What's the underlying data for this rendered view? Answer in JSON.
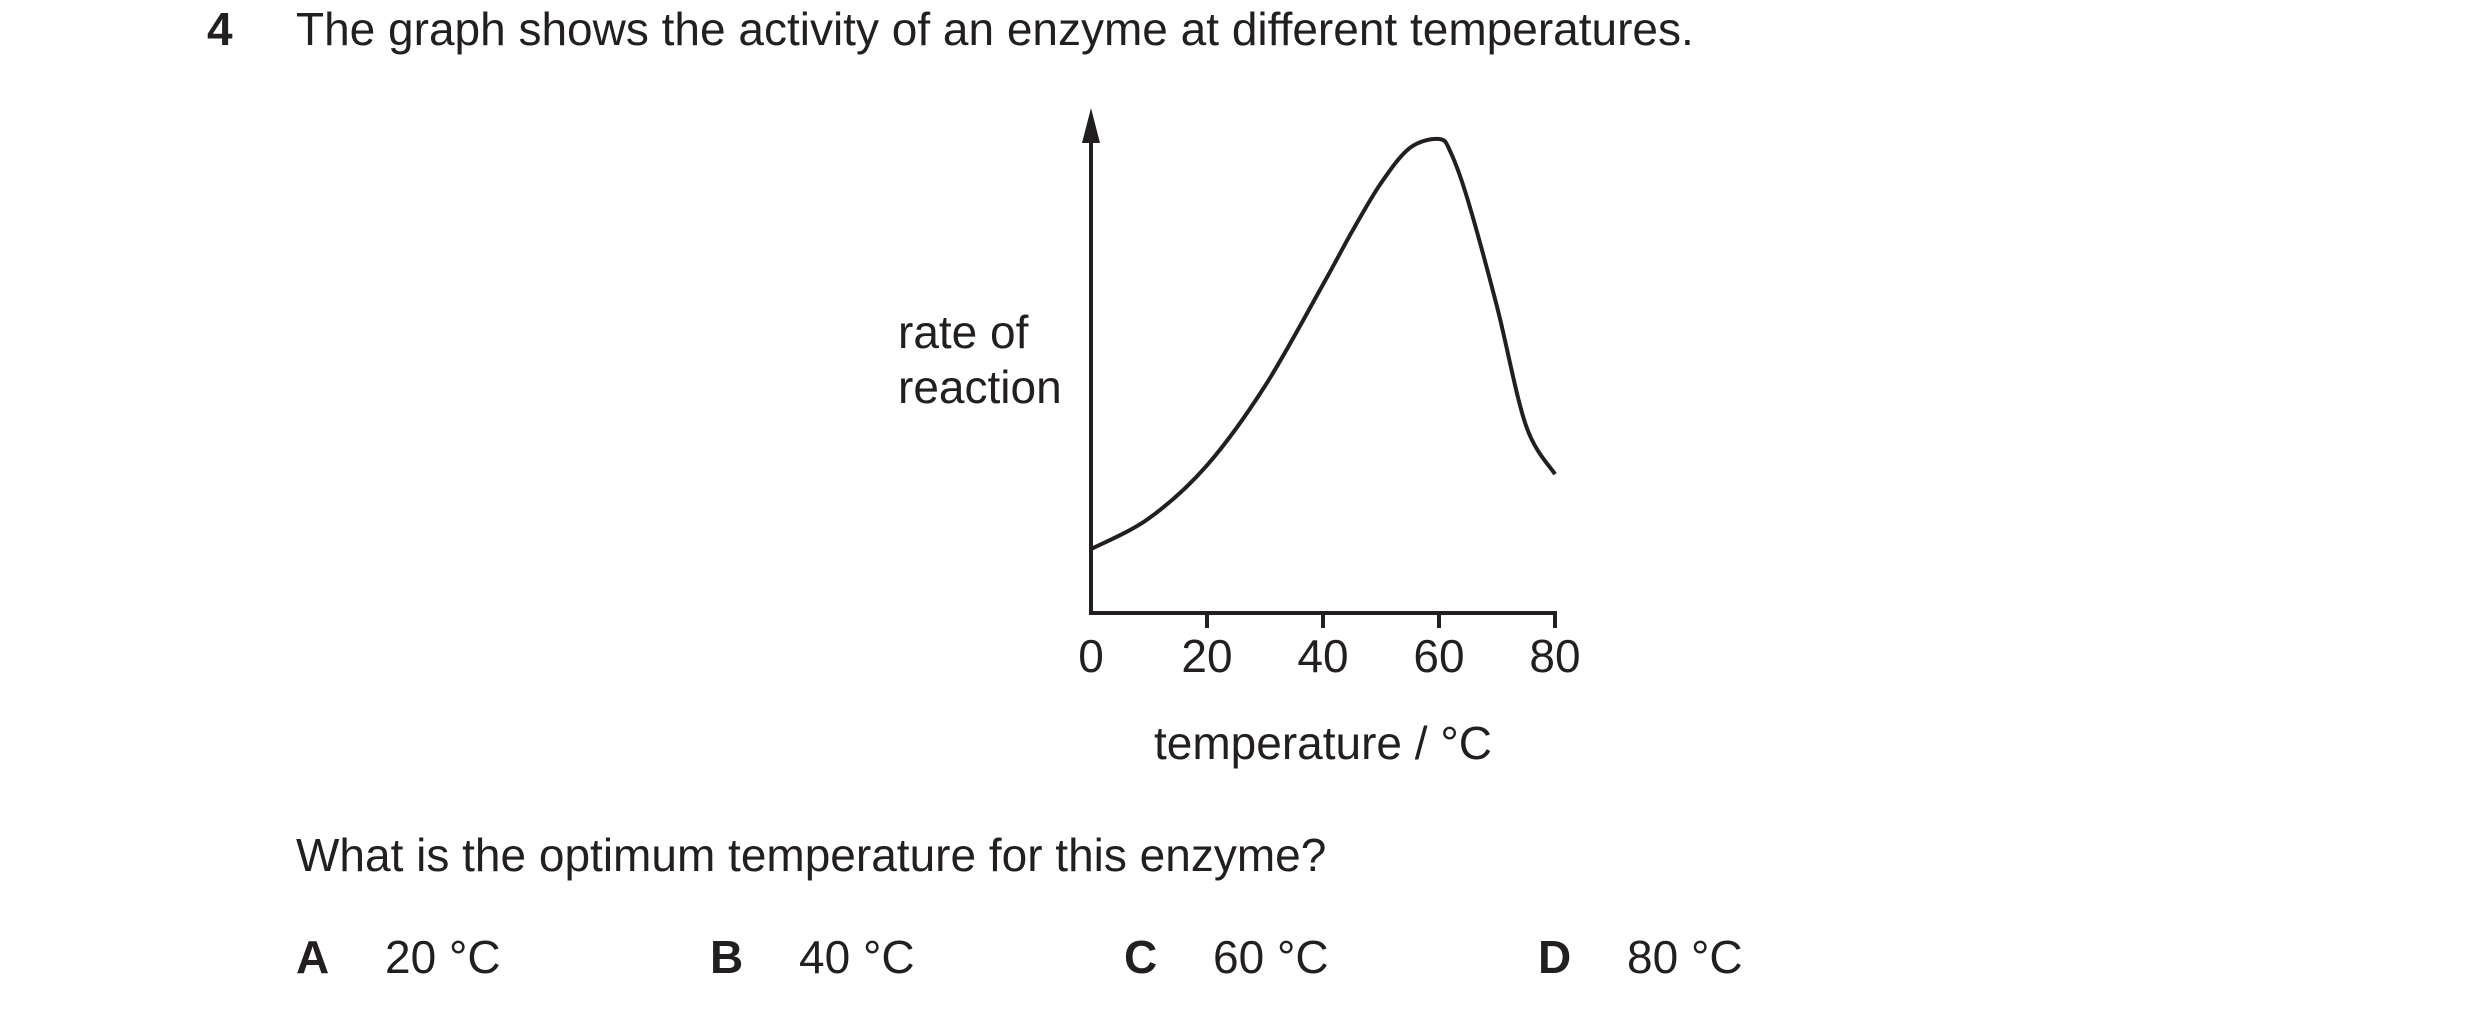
{
  "question": {
    "number": "4",
    "stem": "The graph shows the activity of an enzyme at different temperatures.",
    "prompt": "What is the optimum temperature for this enzyme?",
    "options": [
      {
        "letter": "A",
        "text": "20 °C"
      },
      {
        "letter": "B",
        "text": "40 °C"
      },
      {
        "letter": "C",
        "text": "60 °C"
      },
      {
        "letter": "D",
        "text": "80 °C"
      }
    ]
  },
  "chart_data": {
    "type": "line",
    "title": "",
    "xlabel": "temperature / °C",
    "ylabel": "rate of reaction",
    "ylabel_lines": [
      "rate of",
      "reaction"
    ],
    "xticks": [
      "0",
      "20",
      "40",
      "60",
      "80"
    ],
    "xlim": [
      0,
      80
    ],
    "ylim": [
      0,
      1
    ],
    "y_numeric_scale": false,
    "grid": false,
    "series": [
      {
        "x": [
          0,
          10,
          20,
          30,
          40,
          45,
          50,
          55,
          60,
          62,
          65,
          70,
          75,
          80
        ],
        "values": [
          0.07,
          0.14,
          0.26,
          0.44,
          0.67,
          0.79,
          0.9,
          0.98,
          1.0,
          0.97,
          0.86,
          0.62,
          0.35,
          0.24
        ]
      }
    ]
  }
}
